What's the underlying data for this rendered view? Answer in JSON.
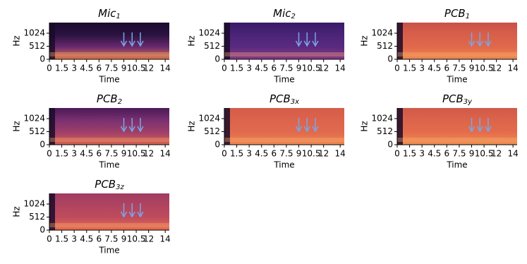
{
  "chart_data": [
    {
      "type": "spectrogram",
      "title": "Mic",
      "title_sub": "1",
      "xlabel": "Time",
      "ylabel": "Hz",
      "xlim": [
        0,
        14.5
      ],
      "ylim": [
        0,
        1440
      ],
      "xticks": [
        0,
        1.5,
        3,
        4.5,
        6,
        7.5,
        9,
        10.5,
        12,
        14
      ],
      "yticks": [
        0,
        512,
        1024
      ],
      "arrows_x": [
        9,
        10,
        11
      ],
      "arrow_color": "#7aa6e6",
      "colors": [
        "#e0784a",
        "#6a2a6e",
        "#2a1240",
        "#1a0c2e"
      ]
    },
    {
      "type": "spectrogram",
      "title": "Mic",
      "title_sub": "2",
      "xlabel": "Time",
      "ylabel": "Hz",
      "xlim": [
        0,
        14.5
      ],
      "ylim": [
        0,
        1440
      ],
      "xticks": [
        0,
        1.5,
        3,
        4.5,
        6,
        7.5,
        9,
        10.5,
        12,
        14
      ],
      "yticks": [
        0,
        512,
        1024
      ],
      "arrows_x": [
        9,
        10,
        11
      ],
      "arrow_color": "#7aa6e6",
      "colors": [
        "#8a3a86",
        "#5a2a80",
        "#4a2478",
        "#3a1a66"
      ]
    },
    {
      "type": "spectrogram",
      "title": "PCB",
      "title_sub": "1",
      "xlabel": "Time",
      "ylabel": "Hz",
      "xlim": [
        0,
        14.5
      ],
      "ylim": [
        0,
        1440
      ],
      "xticks": [
        0,
        1.5,
        3,
        4.5,
        6,
        7.5,
        9,
        10.5,
        12,
        14
      ],
      "yticks": [
        0,
        512,
        1024
      ],
      "arrows_x": [
        9,
        10,
        11
      ],
      "arrow_color": "#7aa6e6",
      "colors": [
        "#f08a50",
        "#e0684c",
        "#d8604a",
        "#c85048"
      ]
    },
    {
      "type": "spectrogram",
      "title": "PCB",
      "title_sub": "2",
      "xlabel": "Time",
      "ylabel": "Hz",
      "xlim": [
        0,
        14.5
      ],
      "ylim": [
        0,
        1440
      ],
      "xticks": [
        0,
        1.5,
        3,
        4.5,
        6,
        7.5,
        9,
        10.5,
        12,
        14
      ],
      "yticks": [
        0,
        512,
        1024
      ],
      "arrows_x": [
        9,
        10,
        11
      ],
      "arrow_color": "#7aa6e6",
      "colors": [
        "#d86050",
        "#a0406a",
        "#7a3070",
        "#4a1a56"
      ]
    },
    {
      "type": "spectrogram",
      "title": "PCB",
      "title_sub": "3x",
      "xlabel": "Time",
      "ylabel": "Hz",
      "xlim": [
        0,
        14.5
      ],
      "ylim": [
        0,
        1440
      ],
      "xticks": [
        0,
        1.5,
        3,
        4.5,
        6,
        7.5,
        9,
        10.5,
        12,
        14
      ],
      "yticks": [
        0,
        512,
        1024
      ],
      "arrows_x": [
        9,
        10,
        11
      ],
      "arrow_color": "#7aa6e6",
      "colors": [
        "#f08850",
        "#e06a4e",
        "#dc644c",
        "#d45c4a"
      ]
    },
    {
      "type": "spectrogram",
      "title": "PCB",
      "title_sub": "3y",
      "xlabel": "Time",
      "ylabel": "Hz",
      "xlim": [
        0,
        14.5
      ],
      "ylim": [
        0,
        1440
      ],
      "xticks": [
        0,
        1.5,
        3,
        4.5,
        6,
        7.5,
        9,
        10.5,
        12,
        14
      ],
      "yticks": [
        0,
        512,
        1024
      ],
      "arrows_x": [
        9,
        10,
        11
      ],
      "arrow_color": "#7aa6e6",
      "colors": [
        "#f09050",
        "#e46c4c",
        "#dc644a",
        "#d05a4a"
      ]
    },
    {
      "type": "spectrogram",
      "title": "PCB",
      "title_sub": "3z",
      "xlabel": "Time",
      "ylabel": "Hz",
      "xlim": [
        0,
        14.5
      ],
      "ylim": [
        0,
        1440
      ],
      "xticks": [
        0,
        1.5,
        3,
        4.5,
        6,
        7.5,
        9,
        10.5,
        12,
        14
      ],
      "yticks": [
        0,
        512,
        1024
      ],
      "arrows_x": [
        9,
        10,
        11
      ],
      "arrow_color": "#7aa6e6",
      "colors": [
        "#e87050",
        "#c04c5c",
        "#b04460",
        "#a03c62"
      ]
    }
  ]
}
